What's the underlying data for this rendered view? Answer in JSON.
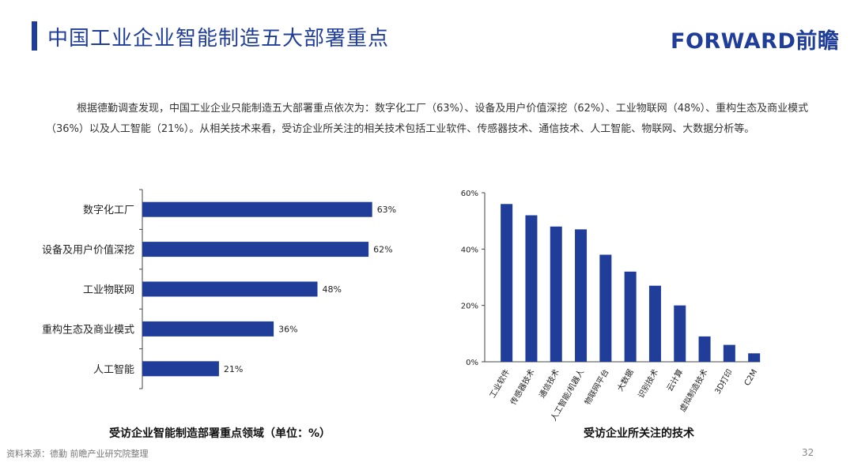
{
  "header": {
    "title": "中国工业企业智能制造五大部署重点",
    "logo": "FORWARD前瞻"
  },
  "intro": "根据德勤调查发现，中国工业企业只能制造五大部署重点依次为：数字化工厂（63%）、设备及用户价值深挖（62%）、工业物联网（48%）、重构生态及商业模式（36%）以及人工智能（21%）。从相关技术来看，受访企业所关注的相关技术包括工业软件、传感器技术、通信技术、人工智能、物联网、大数据分析等。",
  "colors": {
    "bar": "#1f3d99",
    "title": "#1f3d99"
  },
  "chart_data": [
    {
      "type": "bar",
      "orientation": "horizontal",
      "title": "受访企业智能制造部署重点领域（单位：%）",
      "categories": [
        "数字化工厂",
        "设备及用户价值深挖",
        "工业物联网",
        "重构生态及商业模式",
        "人工智能"
      ],
      "values": [
        63,
        62,
        48,
        36,
        21
      ],
      "value_labels": [
        "63%",
        "62%",
        "48%",
        "36%",
        "21%"
      ],
      "xlim": [
        0,
        70
      ]
    },
    {
      "type": "bar",
      "title": "受访企业所关注的技术",
      "categories": [
        "工业软件",
        "传感器技术",
        "通信技术",
        "人工智能/机器人",
        "物联网平台",
        "大数据",
        "识别技术",
        "云计算",
        "虚拟制造技术",
        "3D打印",
        "C2M"
      ],
      "values": [
        56,
        52,
        48,
        47,
        38,
        32,
        27,
        20,
        9,
        6,
        3
      ],
      "ylim": [
        0,
        60
      ],
      "yticks": [
        "0%",
        "20%",
        "40%",
        "60%"
      ],
      "ytick_values": [
        0,
        20,
        40,
        60
      ]
    }
  ],
  "footer": {
    "source": "资料来源：德勤 前瞻产业研究院整理",
    "page": "32"
  }
}
